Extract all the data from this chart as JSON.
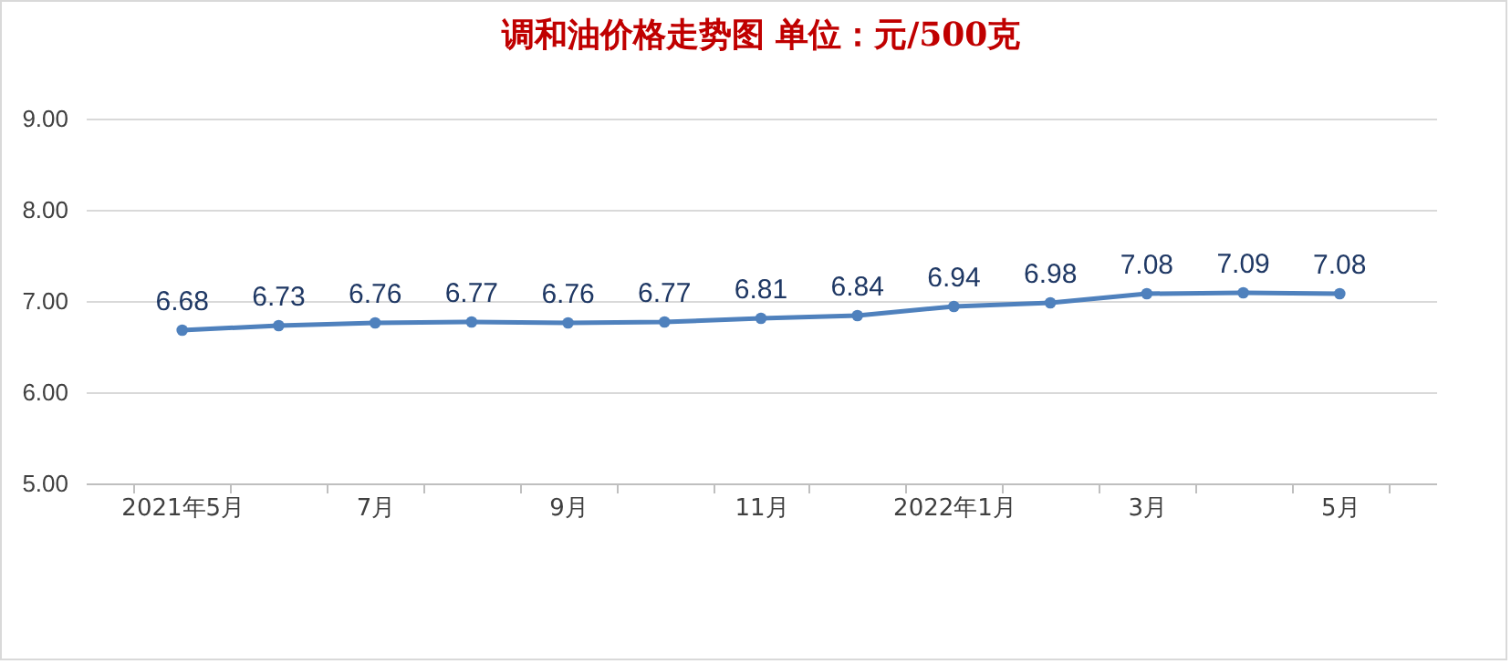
{
  "chart_data": {
    "type": "line",
    "title": "调和油价格走势图    单位：元/500克",
    "categories": [
      "2021年5月",
      null,
      "7月",
      null,
      "9月",
      null,
      "11月",
      null,
      "2022年1月",
      null,
      "3月",
      null,
      "5月"
    ],
    "series": [
      {
        "color": "#4f81bd",
        "values": [
          6.68,
          6.73,
          6.76,
          6.77,
          6.76,
          6.77,
          6.81,
          6.84,
          6.94,
          6.98,
          7.08,
          7.09,
          7.08
        ]
      }
    ],
    "ylim": [
      5,
      9
    ],
    "yticks": [
      {
        "value": 5,
        "label": "5.00"
      },
      {
        "value": 6,
        "label": "6.00"
      },
      {
        "value": 7,
        "label": "7.00"
      },
      {
        "value": 8,
        "label": "8.00"
      },
      {
        "value": 9,
        "label": "9.00"
      }
    ],
    "grid": "y",
    "marker": "circle",
    "line_style": "solid",
    "data_labels": true
  }
}
